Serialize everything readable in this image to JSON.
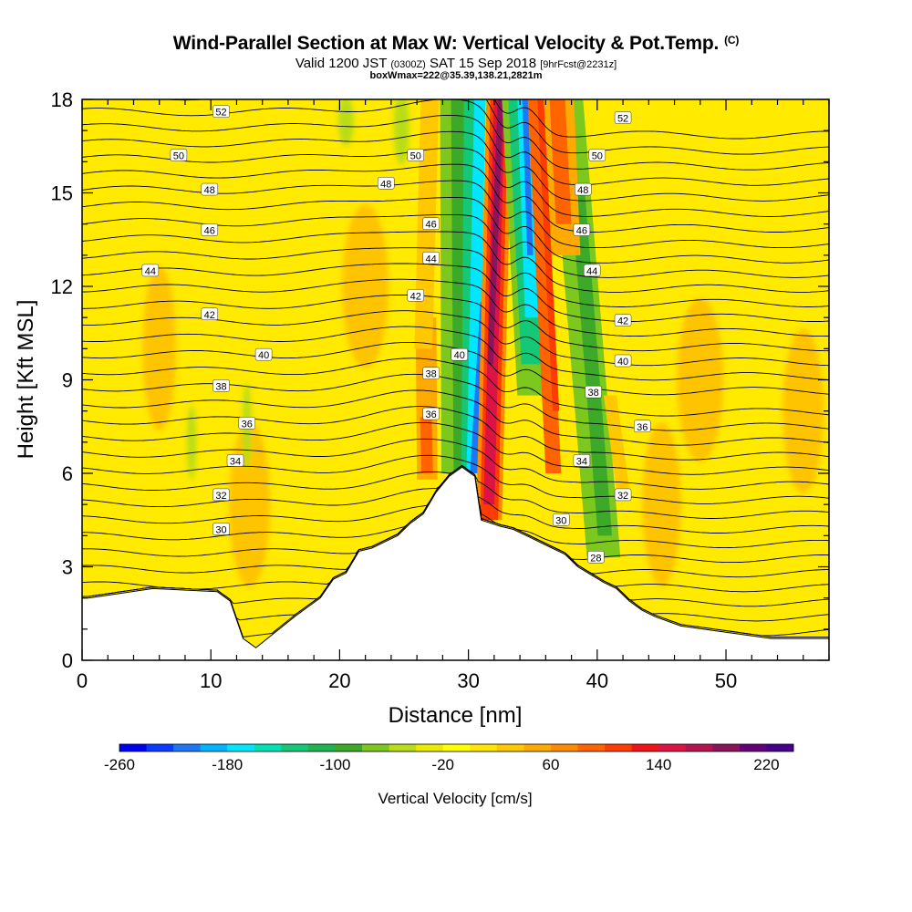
{
  "header": {
    "title": "Wind-Parallel Section at Max W: Vertical Velocity & Pot.Temp.",
    "title_tag": "(C)",
    "valid_prefix": "Valid 1200 JST",
    "utc_time": "(0300Z)",
    "valid_date": "SAT 15 Sep 2018",
    "forecast_tag": "[9hrFcst@2231z]",
    "box_info": "boxWmax=222@35.39,138.21,2821m"
  },
  "chart_data": {
    "type": "heatmap",
    "xlabel": "Distance [nm]",
    "ylabel": "Height [Kft MSL]",
    "xlim": [
      0,
      58
    ],
    "ylim": [
      0,
      18
    ],
    "x_ticks": [
      0,
      10,
      20,
      30,
      40,
      50
    ],
    "y_ticks": [
      0,
      3,
      6,
      9,
      12,
      15,
      18
    ],
    "terrain": {
      "x": [
        0,
        0.5,
        5.5,
        10.5,
        11.5,
        12.5,
        13.5,
        16.5,
        17.5,
        18.5,
        19.5,
        20.5,
        21.5,
        22.5,
        23.5,
        24.5,
        25.5,
        26.5,
        27.5,
        28.5,
        29.5,
        30.5,
        31,
        32.5,
        33.5,
        34.5,
        35.5,
        36.5,
        37.5,
        38.5,
        40.5,
        41.5,
        42.5,
        43.5,
        44.5,
        46.5,
        53.5,
        58
      ],
      "height_kft": [
        2,
        2,
        2.3,
        2.2,
        1.9,
        0.7,
        0.4,
        1.4,
        1.7,
        2,
        2.6,
        2.8,
        3.5,
        3.6,
        3.8,
        4,
        4.4,
        4.7,
        5.4,
        5.9,
        6.2,
        5.9,
        4.5,
        4.3,
        4.2,
        4,
        3.8,
        3.6,
        3.4,
        3.0,
        2.5,
        2.3,
        1.9,
        1.6,
        1.4,
        1.1,
        0.7,
        0.7
      ]
    },
    "vertical_velocity_cm_s": {
      "max_updraft": 222,
      "features": [
        {
          "type": "updraft",
          "x_nm": [
            31.2,
            33.6
          ],
          "height_kft": [
            4.5,
            18
          ],
          "peak_cm_s": 222
        },
        {
          "type": "downdraft",
          "x_nm": [
            29.8,
            35.3
          ],
          "height_kft": [
            6,
            18
          ],
          "peak_cm_s": -260
        },
        {
          "type": "weak_updraft",
          "x_nm": [
            26.5,
            28.5
          ],
          "height_kft": [
            5.8,
            10
          ],
          "peak_cm_s": 100
        },
        {
          "type": "updraft",
          "x_nm": [
            36.5,
            38.5
          ],
          "height_kft": [
            13,
            18
          ],
          "peak_cm_s": 150
        },
        {
          "type": "weak_downdraft",
          "x_nm": [
            38,
            41.5
          ],
          "height_kft": [
            3,
            13
          ],
          "peak_cm_s": -60
        }
      ]
    },
    "isentropes_potential_temperature_C": [
      28,
      30,
      32,
      34,
      36,
      38,
      40,
      42,
      44,
      46,
      48,
      50,
      52
    ],
    "contour_labels": [
      {
        "text": "52",
        "x": 10.8,
        "y": 17.6
      },
      {
        "text": "52",
        "x": 42,
        "y": 17.4
      },
      {
        "text": "50",
        "x": 7.5,
        "y": 16.2
      },
      {
        "text": "50",
        "x": 25.9,
        "y": 16.2
      },
      {
        "text": "50",
        "x": 40,
        "y": 16.2
      },
      {
        "text": "48",
        "x": 9.9,
        "y": 15.1
      },
      {
        "text": "48",
        "x": 23.6,
        "y": 15.3
      },
      {
        "text": "48",
        "x": 38.9,
        "y": 15.1
      },
      {
        "text": "46",
        "x": 9.9,
        "y": 13.8
      },
      {
        "text": "46",
        "x": 27.1,
        "y": 14.0
      },
      {
        "text": "46",
        "x": 38.8,
        "y": 13.8
      },
      {
        "text": "44",
        "x": 5.3,
        "y": 12.5
      },
      {
        "text": "44",
        "x": 27.1,
        "y": 12.9
      },
      {
        "text": "44",
        "x": 39.6,
        "y": 12.5
      },
      {
        "text": "42",
        "x": 9.9,
        "y": 11.1
      },
      {
        "text": "42",
        "x": 25.9,
        "y": 11.7
      },
      {
        "text": "42",
        "x": 42,
        "y": 10.9
      },
      {
        "text": "40",
        "x": 14.1,
        "y": 9.8
      },
      {
        "text": "40",
        "x": 29.3,
        "y": 9.8
      },
      {
        "text": "40",
        "x": 42,
        "y": 9.6
      },
      {
        "text": "38",
        "x": 10.8,
        "y": 8.8
      },
      {
        "text": "38",
        "x": 27.1,
        "y": 9.2
      },
      {
        "text": "38",
        "x": 39.7,
        "y": 8.6
      },
      {
        "text": "36",
        "x": 12.8,
        "y": 7.6
      },
      {
        "text": "36",
        "x": 27.1,
        "y": 7.9
      },
      {
        "text": "36",
        "x": 43.5,
        "y": 7.5
      },
      {
        "text": "34",
        "x": 11.9,
        "y": 6.4
      },
      {
        "text": "34",
        "x": 38.8,
        "y": 6.4
      },
      {
        "text": "32",
        "x": 10.8,
        "y": 5.3
      },
      {
        "text": "32",
        "x": 42,
        "y": 5.3
      },
      {
        "text": "30",
        "x": 10.8,
        "y": 4.2
      },
      {
        "text": "30",
        "x": 37.2,
        "y": 4.5
      },
      {
        "text": "28",
        "x": 39.9,
        "y": 3.3
      }
    ]
  },
  "colorbar": {
    "label": "Vertical Velocity [cm/s]",
    "tick_labels": [
      "-260",
      "-180",
      "-100",
      "-20",
      "60",
      "140",
      "220"
    ],
    "colors": [
      "#0000f2",
      "#0a3cff",
      "#1e78f6",
      "#00b4ff",
      "#00e6ff",
      "#00e1b4",
      "#14c878",
      "#1eb450",
      "#3caa28",
      "#7dc81e",
      "#b9dc14",
      "#ebeb00",
      "#ffff00",
      "#ffe600",
      "#ffc800",
      "#ffaa00",
      "#ff8c00",
      "#ff6400",
      "#ff3c00",
      "#f01414",
      "#dc1446",
      "#b41450",
      "#8c145a",
      "#640078",
      "#46008c"
    ]
  }
}
